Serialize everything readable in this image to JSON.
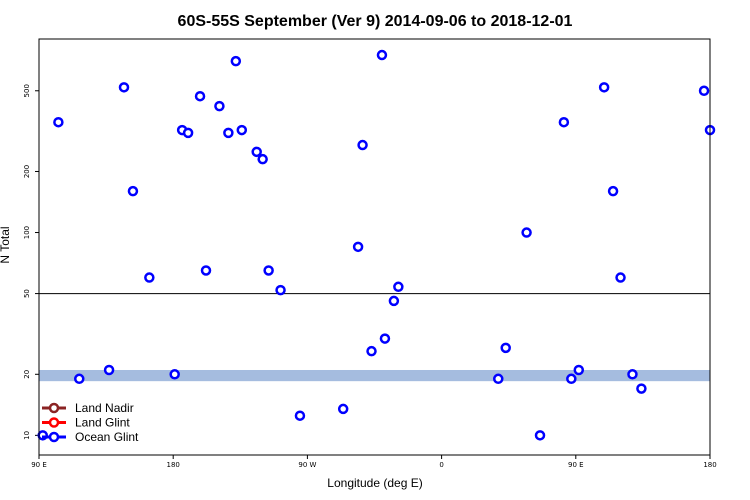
{
  "chart_data": {
    "type": "scatter",
    "title": "60S-55S September (Ver 9)   2014-09-06 to 2018-12-01",
    "xlabel": "Longitude (deg E)",
    "ylabel": "N Total",
    "xlim": [
      90,
      540
    ],
    "ylim": [
      8,
      900
    ],
    "y_scale": "log",
    "x_ticks": [
      {
        "value": 90,
        "label": "90 E"
      },
      {
        "value": 180,
        "label": "180"
      },
      {
        "value": 270,
        "label": "90 W"
      },
      {
        "value": 360,
        "label": "0"
      },
      {
        "value": 450,
        "label": "90 E"
      },
      {
        "value": 540,
        "label": "180"
      }
    ],
    "y_ticks": [
      {
        "value": 10,
        "label": "10"
      },
      {
        "value": 20,
        "label": "20"
      },
      {
        "value": 50,
        "label": "50"
      },
      {
        "value": 100,
        "label": "100"
      },
      {
        "value": 200,
        "label": "200"
      },
      {
        "value": 500,
        "label": "500"
      }
    ],
    "reference_line": {
      "y": 50
    },
    "reference_band": {
      "y_min": 18.5,
      "y_max": 21.0,
      "color": "#a5bcdf"
    },
    "grid": false,
    "legend_position": "bottom-left",
    "series": [
      {
        "name": "Land Nadir",
        "color": "#8b2323",
        "values": []
      },
      {
        "name": "Land Glint",
        "color": "#ff0000",
        "values": []
      },
      {
        "name": "Ocean Glint",
        "color": "#0000ff",
        "x": [
          92.5,
          103,
          117,
          137,
          147,
          153,
          164,
          181,
          186,
          190,
          198,
          202,
          211,
          217,
          222,
          236,
          226,
          240,
          244,
          252,
          265,
          294,
          304,
          307,
          313,
          320,
          322,
          328,
          331,
          398,
          417,
          403,
          426,
          442,
          447,
          452,
          469,
          475,
          480,
          488,
          540,
          494,
          536
        ],
        "y": [
          10,
          350,
          19,
          21,
          520,
          160,
          60,
          20,
          320,
          310,
          470,
          65,
          420,
          310,
          700,
          250,
          320,
          230,
          65,
          52,
          12.5,
          13.5,
          85,
          270,
          26,
          750,
          30,
          46,
          54,
          19,
          100,
          27,
          10,
          350,
          19,
          21,
          520,
          160,
          60,
          20,
          320,
          17,
          500
        ]
      }
    ]
  }
}
